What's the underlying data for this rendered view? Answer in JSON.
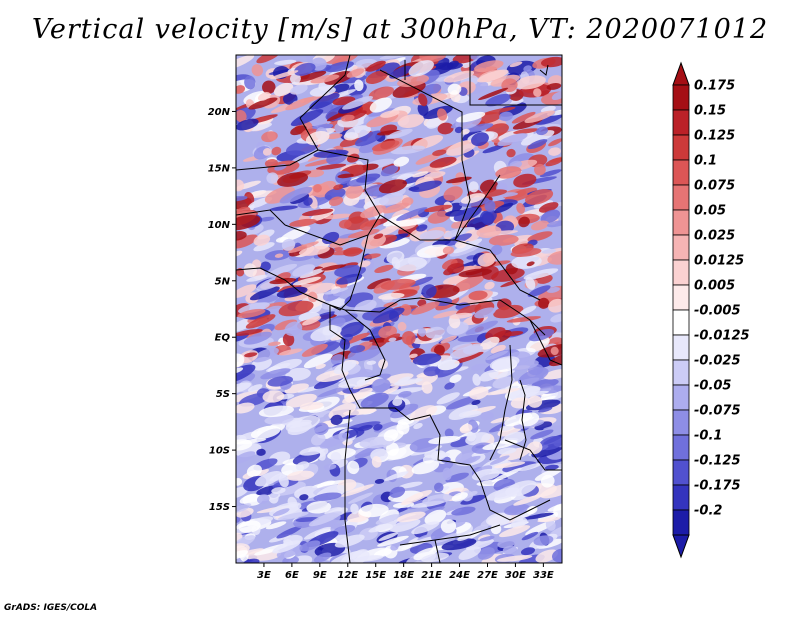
{
  "title": "Vertical velocity [m/s] at 300hPa, VT: 2020071012",
  "credit": "GrADS: IGES/COLA",
  "map": {
    "region": "Central Africa",
    "lon_range": [
      0,
      35
    ],
    "lat_range": [
      -20,
      25
    ],
    "lat_ticks": [
      {
        "label": "20N",
        "value": 20
      },
      {
        "label": "15N",
        "value": 15
      },
      {
        "label": "10N",
        "value": 10
      },
      {
        "label": "5N",
        "value": 5
      },
      {
        "label": "EQ",
        "value": 0
      },
      {
        "label": "5S",
        "value": -5
      },
      {
        "label": "10S",
        "value": -10
      },
      {
        "label": "15S",
        "value": -15
      }
    ],
    "lon_ticks": [
      {
        "label": "3E",
        "value": 3
      },
      {
        "label": "6E",
        "value": 6
      },
      {
        "label": "9E",
        "value": 9
      },
      {
        "label": "12E",
        "value": 12
      },
      {
        "label": "15E",
        "value": 15
      },
      {
        "label": "18E",
        "value": 18
      },
      {
        "label": "21E",
        "value": 21
      },
      {
        "label": "24E",
        "value": 24
      },
      {
        "label": "27E",
        "value": 27
      },
      {
        "label": "30E",
        "value": 30
      },
      {
        "label": "33E",
        "value": 33
      }
    ]
  },
  "colorbar": {
    "units": "m/s",
    "levels": [
      {
        "label": "0.175",
        "color": "#a50f15"
      },
      {
        "label": "0.15",
        "color": "#bb2128"
      },
      {
        "label": "0.125",
        "color": "#cd3a3a"
      },
      {
        "label": "0.1",
        "color": "#dc5656"
      },
      {
        "label": "0.075",
        "color": "#e67474"
      },
      {
        "label": "0.05",
        "color": "#ef9494"
      },
      {
        "label": "0.025",
        "color": "#f6b4b4"
      },
      {
        "label": "0.0125",
        "color": "#fbd2d2"
      },
      {
        "label": "0.005",
        "color": "#fdeaea"
      },
      {
        "label": "-0.005",
        "color": "#ffffff"
      },
      {
        "label": "-0.0125",
        "color": "#e8e8fb"
      },
      {
        "label": "-0.025",
        "color": "#ccccf6"
      },
      {
        "label": "-0.05",
        "color": "#adadee"
      },
      {
        "label": "-0.075",
        "color": "#8e8ee6"
      },
      {
        "label": "-0.1",
        "color": "#7070dc"
      },
      {
        "label": "-0.125",
        "color": "#5151cf"
      },
      {
        "label": "-0.175",
        "color": "#3434be"
      },
      {
        "label": "-0.2",
        "color": "#1c1ca8"
      }
    ],
    "over_color": "#a50f15",
    "under_color": "#1c1ca8"
  }
}
